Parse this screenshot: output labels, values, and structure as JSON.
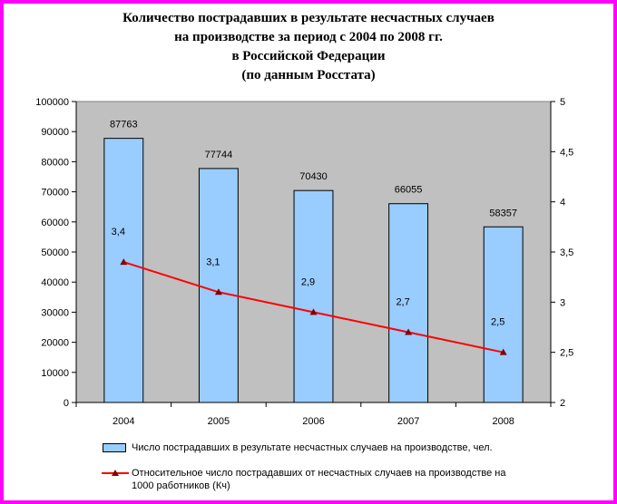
{
  "chart_data": {
    "type": "bar",
    "title_lines": [
      "Количество пострадавших в результате несчастных случаев",
      "на производстве за период с 2004 по 2008 гг.",
      "в Российской Федерации",
      "(по данным Росстата)"
    ],
    "categories": [
      "2004",
      "2005",
      "2006",
      "2007",
      "2008"
    ],
    "y_ticks": [
      "0",
      "10000",
      "20000",
      "30000",
      "40000",
      "50000",
      "60000",
      "70000",
      "80000",
      "90000",
      "100000"
    ],
    "y2_ticks": [
      "2",
      "2,5",
      "3",
      "3,5",
      "4",
      "4,5",
      "5"
    ],
    "ylim": [
      0,
      100000
    ],
    "y2lim": [
      2,
      5
    ],
    "grid": false,
    "legend_position": "bottom",
    "series": [
      {
        "name": "Число пострадавших в результате несчастных случаев на производстве, чел.",
        "type": "bar",
        "axis": "left",
        "color": "#99ccff",
        "values": [
          87763,
          77744,
          70430,
          66055,
          58357
        ],
        "labels": [
          "87763",
          "77744",
          "70430",
          "66055",
          "58357"
        ]
      },
      {
        "name_lines": [
          "Относительное число пострадавших от несчастных случаев на производстве на",
          "1000 работников (Кч)"
        ],
        "type": "line",
        "axis": "right",
        "color": "#ff0000",
        "marker_color": "#800000",
        "values": [
          3.4,
          3.1,
          2.9,
          2.7,
          2.5
        ],
        "labels": [
          "3,4",
          "3,1",
          "2,9",
          "2,7",
          "2,5"
        ]
      }
    ],
    "plot_background": "#c0c0c0",
    "frame_color": "#ff00ff"
  }
}
